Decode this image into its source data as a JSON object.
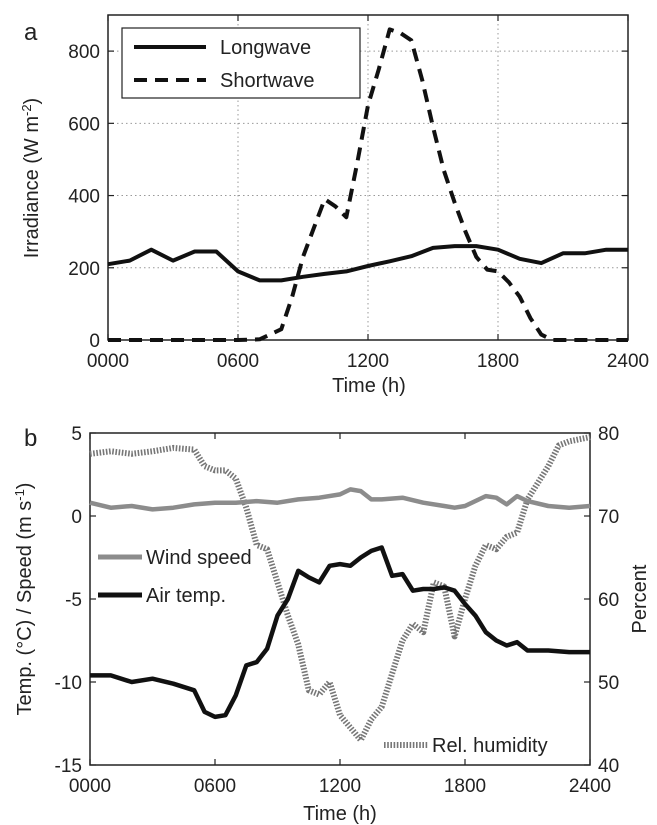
{
  "chart_data": [
    {
      "panel": "a",
      "type": "line",
      "xlabel": "Time (h)",
      "ylabel_parts": [
        "Irradiance (W m",
        "-2",
        ")"
      ],
      "xlim": [
        0,
        2400
      ],
      "ylim": [
        0,
        900
      ],
      "xticks": [
        0,
        600,
        1200,
        1800,
        2400
      ],
      "xtick_labels": [
        "0000",
        "0600",
        "1200",
        "1800",
        "2400"
      ],
      "yticks": [
        0,
        200,
        400,
        600,
        800
      ],
      "ytick_labels": [
        "0",
        "200",
        "400",
        "600",
        "800"
      ],
      "grid": true,
      "legend_position": "top-left",
      "series": [
        {
          "name": "Longwave",
          "style": "solid",
          "color": "#111111",
          "x": [
            0,
            100,
            200,
            300,
            400,
            500,
            600,
            700,
            800,
            900,
            1000,
            1100,
            1200,
            1300,
            1400,
            1500,
            1600,
            1700,
            1800,
            1900,
            2000,
            2100,
            2200,
            2300,
            2400
          ],
          "y": [
            210,
            220,
            250,
            220,
            245,
            245,
            190,
            165,
            165,
            175,
            183,
            190,
            205,
            218,
            232,
            255,
            260,
            260,
            250,
            225,
            213,
            240,
            240,
            250,
            250
          ]
        },
        {
          "name": "Shortwave",
          "style": "dashed",
          "color": "#111111",
          "x": [
            0,
            600,
            700,
            800,
            850,
            900,
            950,
            1000,
            1050,
            1100,
            1150,
            1200,
            1250,
            1300,
            1350,
            1400,
            1450,
            1500,
            1550,
            1600,
            1650,
            1700,
            1750,
            1800,
            1850,
            1900,
            1950,
            2000,
            2050,
            2100,
            2400
          ],
          "y": [
            0,
            0,
            2,
            30,
            120,
            230,
            310,
            390,
            370,
            340,
            490,
            650,
            750,
            860,
            850,
            830,
            720,
            590,
            470,
            380,
            300,
            230,
            195,
            190,
            160,
            120,
            60,
            15,
            0,
            0,
            0
          ]
        }
      ]
    },
    {
      "panel": "b",
      "type": "line",
      "xlabel": "Time (h)",
      "ylabel_left_parts": [
        "Temp. (°C) / Speed (m s",
        "-1",
        ")"
      ],
      "ylabel_right": "Percent",
      "xlim": [
        0,
        2400
      ],
      "ylim_left": [
        -15,
        5
      ],
      "ylim_right": [
        40,
        80
      ],
      "xticks": [
        0,
        600,
        1200,
        1800,
        2400
      ],
      "xtick_labels": [
        "0000",
        "0600",
        "1200",
        "1800",
        "2400"
      ],
      "yticks_left": [
        -15,
        -10,
        -5,
        0,
        5
      ],
      "ytick_labels_left": [
        "-15",
        "-10",
        "-5",
        "0",
        "5"
      ],
      "yticks_right": [
        40,
        50,
        60,
        70,
        80
      ],
      "ytick_labels_right": [
        "40",
        "50",
        "60",
        "70",
        "80"
      ],
      "grid": false,
      "series": [
        {
          "name": "Wind speed",
          "axis": "left",
          "style": "solid",
          "color": "#8c8c8c",
          "x": [
            0,
            100,
            200,
            300,
            400,
            500,
            600,
            700,
            800,
            900,
            1000,
            1100,
            1200,
            1250,
            1300,
            1350,
            1400,
            1500,
            1600,
            1700,
            1750,
            1800,
            1900,
            1950,
            2000,
            2050,
            2100,
            2200,
            2300,
            2400
          ],
          "y": [
            0.8,
            0.5,
            0.6,
            0.4,
            0.5,
            0.7,
            0.8,
            0.8,
            0.9,
            0.8,
            1.0,
            1.1,
            1.3,
            1.6,
            1.5,
            1.0,
            1.0,
            1.1,
            0.8,
            0.6,
            0.5,
            0.6,
            1.2,
            1.1,
            0.7,
            1.2,
            0.9,
            0.6,
            0.5,
            0.6
          ]
        },
        {
          "name": "Air temp.",
          "axis": "left",
          "style": "solid",
          "color": "#111111",
          "x": [
            0,
            100,
            200,
            300,
            400,
            500,
            550,
            600,
            650,
            700,
            750,
            800,
            850,
            900,
            950,
            1000,
            1050,
            1100,
            1150,
            1200,
            1250,
            1300,
            1350,
            1400,
            1450,
            1500,
            1550,
            1600,
            1650,
            1700,
            1750,
            1800,
            1850,
            1900,
            1950,
            2000,
            2050,
            2100,
            2200,
            2300,
            2400
          ],
          "y": [
            -9.6,
            -9.6,
            -10.0,
            -9.8,
            -10.1,
            -10.5,
            -11.8,
            -12.1,
            -12.0,
            -10.8,
            -9.0,
            -8.8,
            -8.0,
            -6.0,
            -5.0,
            -3.3,
            -3.7,
            -4.0,
            -3.0,
            -2.9,
            -3.0,
            -2.5,
            -2.1,
            -1.9,
            -3.6,
            -3.5,
            -4.5,
            -4.4,
            -4.4,
            -4.3,
            -4.5,
            -5.3,
            -6.0,
            -7.0,
            -7.5,
            -7.8,
            -7.6,
            -8.1,
            -8.1,
            -8.2,
            -8.2
          ]
        },
        {
          "name": "Rel. humidity",
          "axis": "right",
          "style": "dotted",
          "color": "#777777",
          "x": [
            0,
            100,
            200,
            300,
            400,
            500,
            550,
            600,
            650,
            700,
            750,
            800,
            850,
            900,
            950,
            1000,
            1050,
            1100,
            1150,
            1200,
            1250,
            1300,
            1350,
            1400,
            1450,
            1500,
            1550,
            1600,
            1650,
            1700,
            1750,
            1800,
            1850,
            1900,
            1950,
            2000,
            2050,
            2100,
            2150,
            2200,
            2250,
            2300,
            2400
          ],
          "y": [
            77.5,
            77.8,
            77.5,
            77.8,
            78.2,
            78.0,
            76.0,
            75.5,
            75.5,
            74.5,
            71.0,
            66.5,
            66.0,
            62.0,
            58.0,
            54.5,
            49.0,
            48.5,
            50.0,
            46.0,
            44.5,
            43.0,
            45.5,
            47.0,
            51.0,
            55.0,
            57.0,
            56.0,
            62.0,
            61.5,
            55.5,
            60.0,
            64.0,
            66.5,
            66.0,
            67.5,
            68.0,
            72.0,
            74.0,
            76.0,
            78.5,
            79.0,
            79.5
          ]
        }
      ],
      "legend": [
        {
          "name": "Wind speed",
          "position": "middle-left"
        },
        {
          "name": "Air temp.",
          "position": "middle-left"
        },
        {
          "name": "Rel. humidity",
          "position": "bottom-right"
        }
      ]
    }
  ],
  "panel_labels": [
    "a",
    "b"
  ]
}
